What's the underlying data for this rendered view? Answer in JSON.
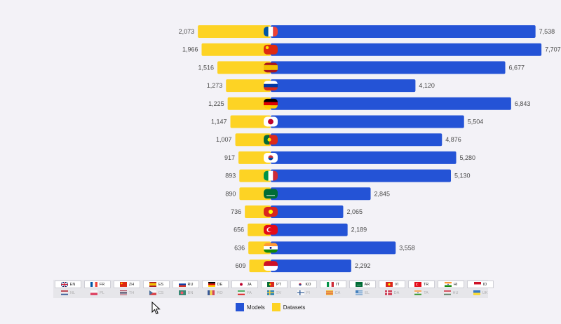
{
  "chart_data": {
    "type": "bar",
    "orientation": "horizontal-diverging",
    "categories": [
      "FR",
      "ZH",
      "ES",
      "RU",
      "DE",
      "JA",
      "PT",
      "KO",
      "IT",
      "AR",
      "VI",
      "TR",
      "HI",
      "ID"
    ],
    "series": [
      {
        "name": "Datasets",
        "color": "#fdd324",
        "values": [
          2073,
          1966,
          1516,
          1273,
          1225,
          1147,
          1007,
          917,
          893,
          890,
          736,
          656,
          636,
          609
        ]
      },
      {
        "name": "Models",
        "color": "#2453d6",
        "values": [
          7538,
          7707,
          6677,
          4120,
          6843,
          5504,
          4876,
          5280,
          5130,
          2845,
          2065,
          2189,
          3558,
          2292
        ]
      }
    ],
    "value_labels": {
      "Datasets": [
        "2,073",
        "1,966",
        "1,516",
        "1,273",
        "1,225",
        "1,147",
        "1,007",
        "917",
        "893",
        "890",
        "736",
        "656",
        "636",
        "609"
      ],
      "Models": [
        "7,538",
        "7,707",
        "6,677",
        "4,120",
        "6,843",
        "5,504",
        "4,876",
        "5,280",
        "5,130",
        "2,845",
        "2,065",
        "2,189",
        "3,558",
        "2,292"
      ]
    },
    "legend_position": "bottom-center"
  },
  "legend": {
    "models_label": "Models",
    "datasets_label": "Datasets"
  },
  "languages_row1": [
    {
      "code": "EN",
      "flag": "gb"
    },
    {
      "code": "FR",
      "flag": "fr"
    },
    {
      "code": "ZH",
      "flag": "cn"
    },
    {
      "code": "ES",
      "flag": "es"
    },
    {
      "code": "RU",
      "flag": "ru"
    },
    {
      "code": "DE",
      "flag": "de"
    },
    {
      "code": "JA",
      "flag": "jp"
    },
    {
      "code": "PT",
      "flag": "pt"
    },
    {
      "code": "KO",
      "flag": "kr"
    },
    {
      "code": "IT",
      "flag": "it"
    },
    {
      "code": "AR",
      "flag": "sa"
    },
    {
      "code": "VI",
      "flag": "vn"
    },
    {
      "code": "TR",
      "flag": "tr"
    },
    {
      "code": "HI",
      "flag": "in"
    },
    {
      "code": "ID",
      "flag": "id"
    }
  ],
  "languages_row2": [
    {
      "code": "NL",
      "flag": "nl"
    },
    {
      "code": "PL",
      "flag": "pl"
    },
    {
      "code": "TH",
      "flag": "th"
    },
    {
      "code": "CS",
      "flag": "cz"
    },
    {
      "code": "BN",
      "flag": "bd"
    },
    {
      "code": "RO",
      "flag": "ro"
    },
    {
      "code": "FA",
      "flag": "ir"
    },
    {
      "code": "SV",
      "flag": "se"
    },
    {
      "code": "FI",
      "flag": "fi"
    },
    {
      "code": "CA",
      "flag": "ca"
    },
    {
      "code": "EL",
      "flag": "gr"
    },
    {
      "code": "DA",
      "flag": "dk"
    },
    {
      "code": "TA",
      "flag": "in"
    },
    {
      "code": "HU",
      "flag": "hu"
    },
    {
      "code": "UK",
      "flag": "ua"
    }
  ],
  "colors": {
    "models": "#2453d6",
    "datasets": "#fdd324",
    "background": "#f3f2f7"
  }
}
